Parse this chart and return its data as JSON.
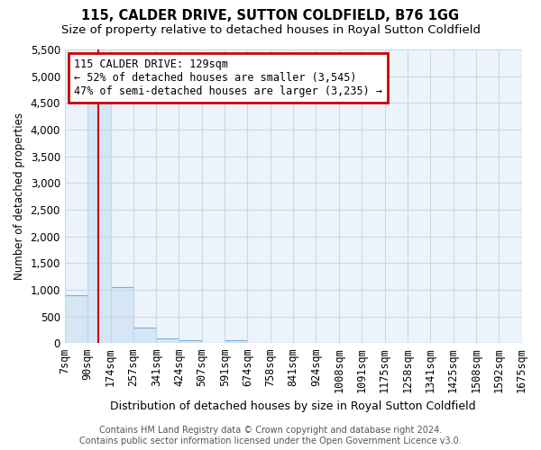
{
  "title": "115, CALDER DRIVE, SUTTON COLDFIELD, B76 1GG",
  "subtitle": "Size of property relative to detached houses in Royal Sutton Coldfield",
  "xlabel": "Distribution of detached houses by size in Royal Sutton Coldfield",
  "ylabel": "Number of detached properties",
  "bar_color": "#d6e6f5",
  "bar_edge_color": "#7bafd4",
  "property_line_color": "#cc0000",
  "property_sqm": 129,
  "annotation_line1": "115 CALDER DRIVE: 129sqm",
  "annotation_line2": "← 52% of detached houses are smaller (3,545)",
  "annotation_line3": "47% of semi-detached houses are larger (3,235) →",
  "annotation_box_color": "#ffffff",
  "annotation_box_edge_color": "#cc0000",
  "bin_edges": [
    7,
    90,
    174,
    257,
    341,
    424,
    507,
    591,
    674,
    758,
    841,
    924,
    1008,
    1091,
    1175,
    1258,
    1341,
    1425,
    1508,
    1592,
    1675
  ],
  "bar_heights": [
    900,
    4550,
    1060,
    290,
    85,
    55,
    0,
    55,
    0,
    0,
    0,
    0,
    0,
    0,
    0,
    0,
    0,
    0,
    0,
    0
  ],
  "ylim": [
    0,
    5500
  ],
  "yticks": [
    0,
    500,
    1000,
    1500,
    2000,
    2500,
    3000,
    3500,
    4000,
    4500,
    5000,
    5500
  ],
  "grid_color": "#c8d8ec",
  "background_color": "#ffffff",
  "plot_bg_color": "#edf3fb",
  "footer_text": "Contains HM Land Registry data © Crown copyright and database right 2024.\nContains public sector information licensed under the Open Government Licence v3.0.",
  "title_fontsize": 10.5,
  "subtitle_fontsize": 9.5,
  "xlabel_fontsize": 9,
  "ylabel_fontsize": 8.5,
  "footer_fontsize": 7,
  "tick_fontsize": 8.5
}
